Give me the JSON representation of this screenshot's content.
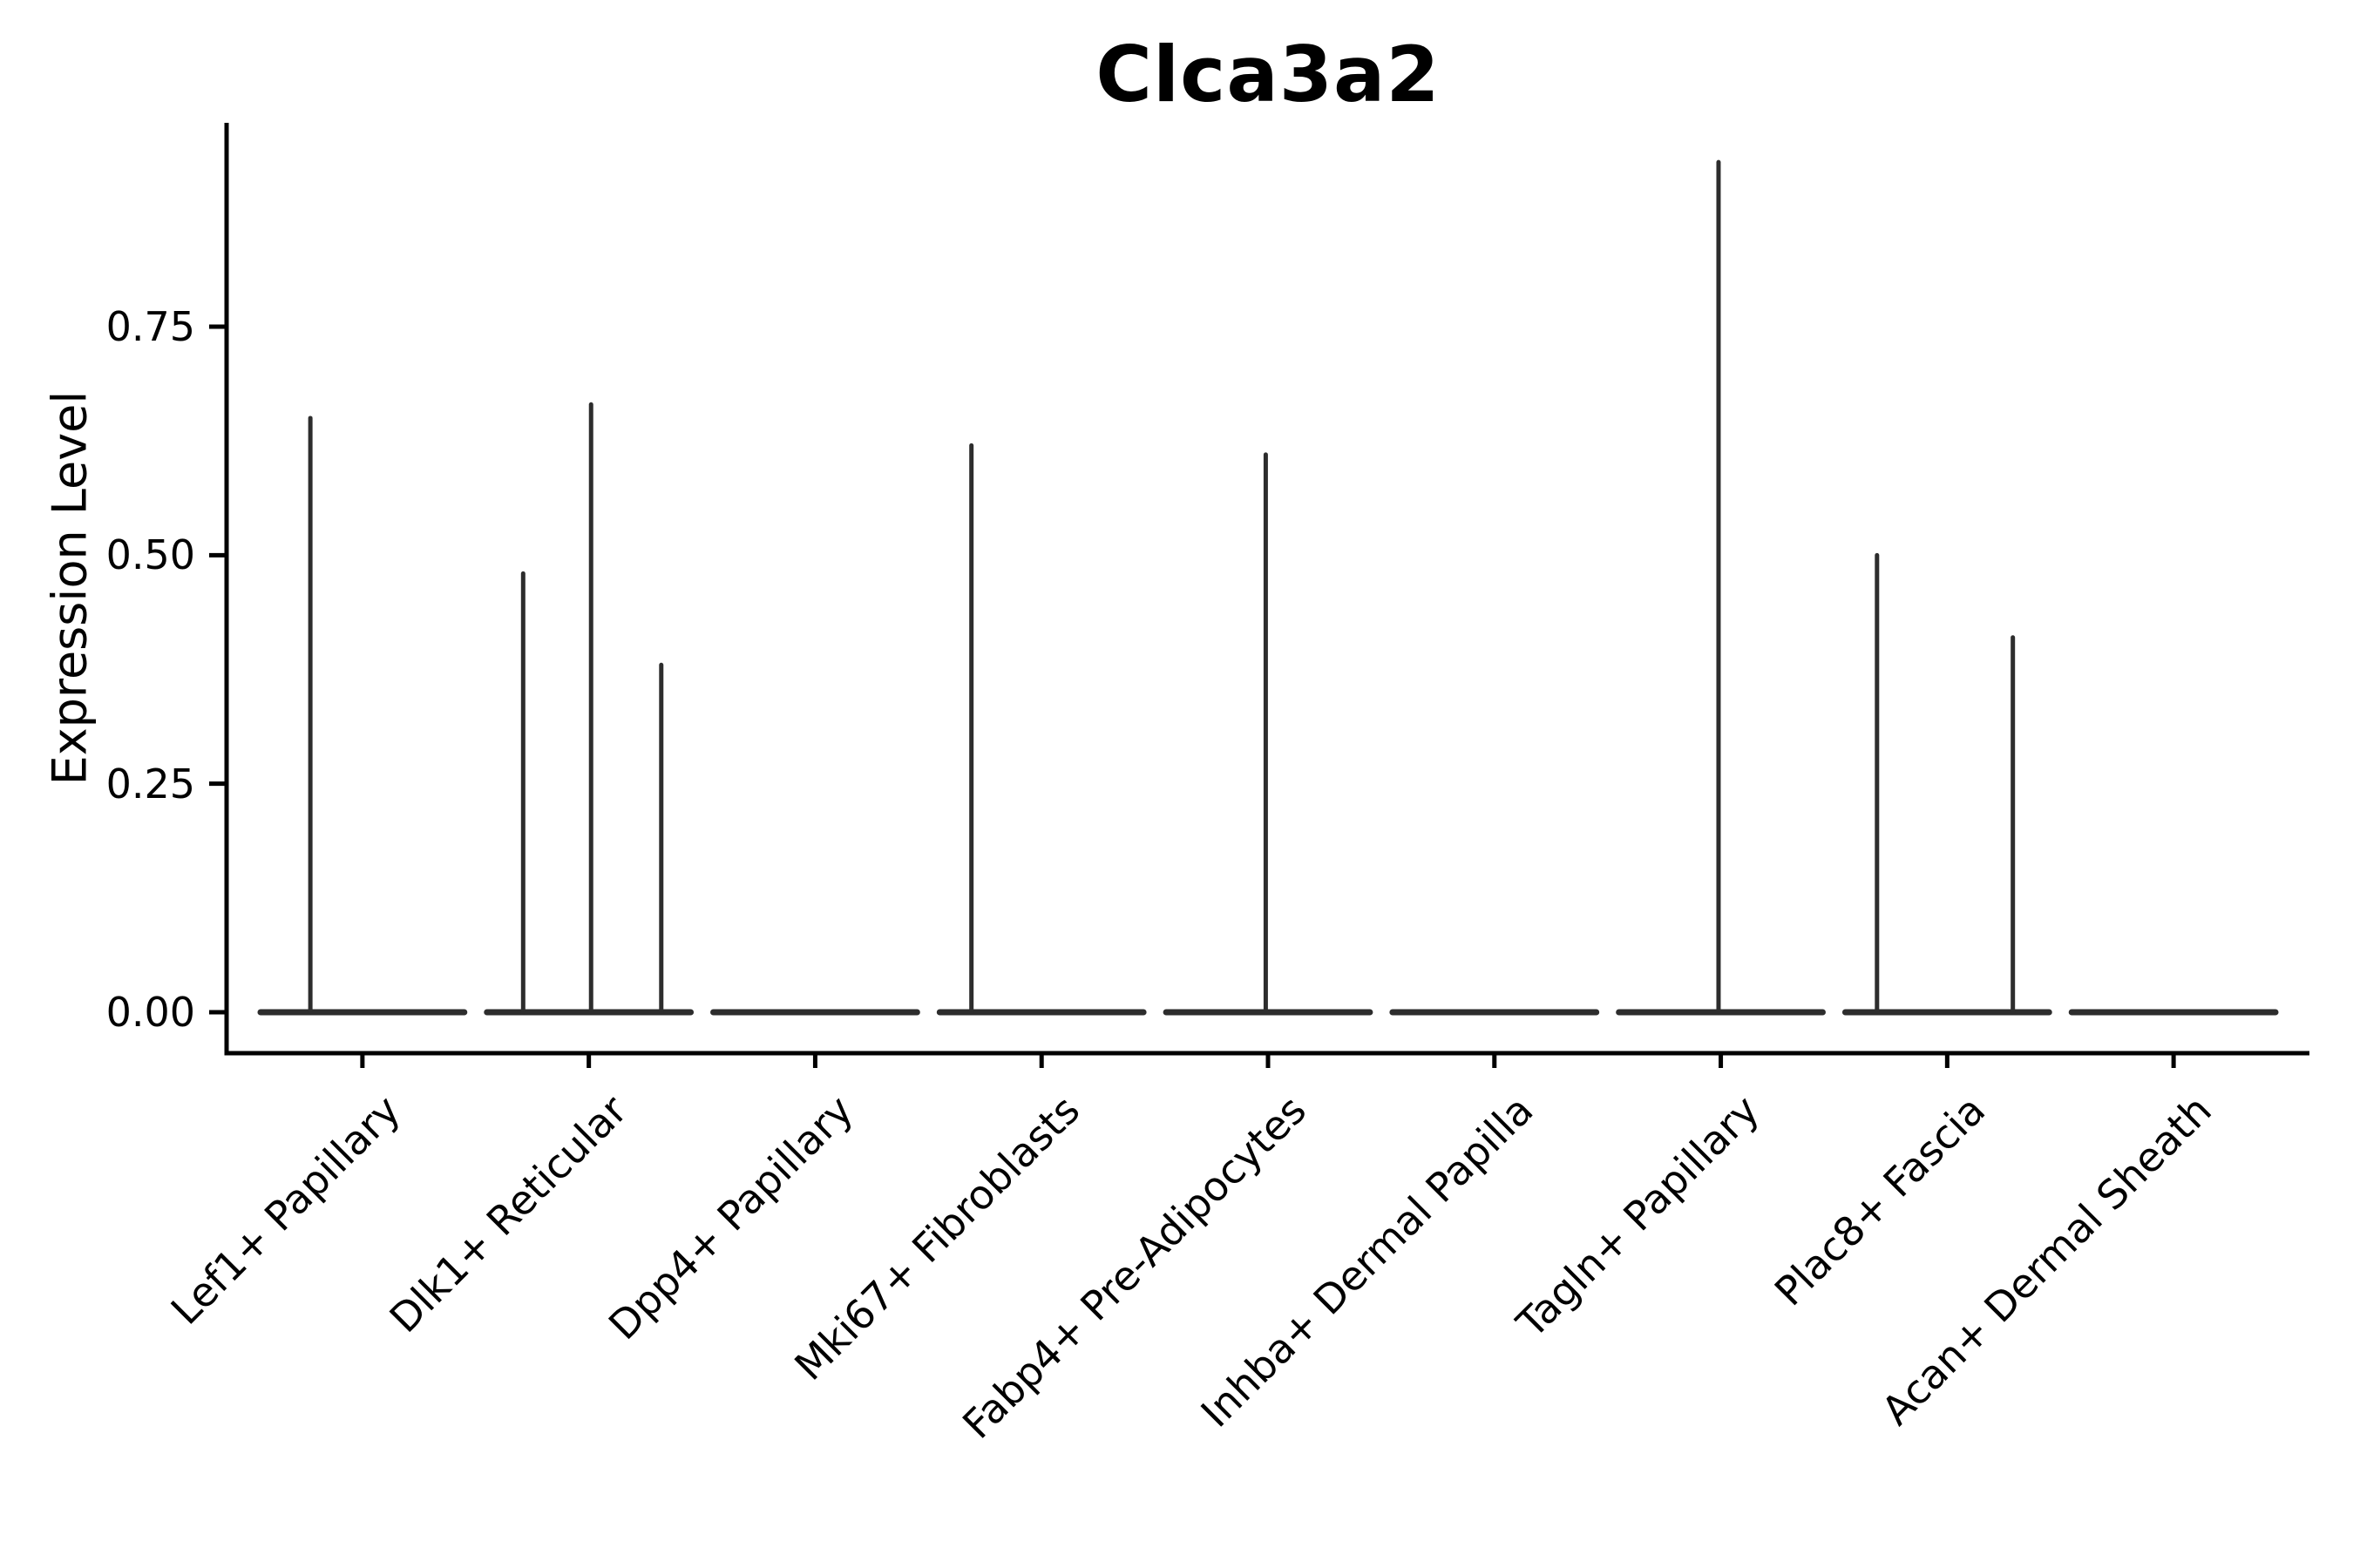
{
  "chart_data": {
    "type": "violin",
    "title": "Clca3a2",
    "ylabel": "Expression Level",
    "xlabel": "",
    "ylim": [
      -0.046,
      0.974
    ],
    "grid": false,
    "legend": "none",
    "violin_width": 0.9,
    "yticks": [
      {
        "value": 0.0,
        "label": "0.00"
      },
      {
        "value": 0.25,
        "label": "0.25"
      },
      {
        "value": 0.5,
        "label": "0.50"
      },
      {
        "value": 0.75,
        "label": "0.75"
      }
    ],
    "categories": [
      {
        "label": "Lef1+ Papillary",
        "baseline_value": 0.0,
        "spikes": [
          {
            "offset": -0.23,
            "value": 0.65
          }
        ]
      },
      {
        "label": "Dlk1+ Reticular",
        "baseline_value": 0.0,
        "spikes": [
          {
            "offset": -0.29,
            "value": 0.48
          },
          {
            "offset": 0.01,
            "value": 0.665
          },
          {
            "offset": 0.32,
            "value": 0.38
          }
        ]
      },
      {
        "label": "Dpp4+ Papillary",
        "baseline_value": 0.0,
        "spikes": []
      },
      {
        "label": "Mki67+ Fibroblasts",
        "baseline_value": 0.0,
        "spikes": [
          {
            "offset": -0.31,
            "value": 0.62
          }
        ]
      },
      {
        "label": "Fabp4+ Pre-Adipocytes",
        "baseline_value": 0.0,
        "spikes": [
          {
            "offset": -0.01,
            "value": 0.61
          }
        ]
      },
      {
        "label": "Inhba+ Dermal Papilla",
        "baseline_value": 0.0,
        "spikes": []
      },
      {
        "label": "Tagln+ Papillary",
        "baseline_value": 0.0,
        "spikes": [
          {
            "offset": -0.01,
            "value": 0.93
          }
        ]
      },
      {
        "label": "Plac8+ Fascia",
        "baseline_value": 0.0,
        "spikes": [
          {
            "offset": -0.31,
            "value": 0.5
          },
          {
            "offset": 0.29,
            "value": 0.41
          }
        ]
      },
      {
        "label": "Acan+ Dermal Sheath",
        "baseline_value": 0.0,
        "spikes": []
      }
    ],
    "colors": {
      "violin_line": "#2d2d2d",
      "axis": "#000000",
      "text": "#000000",
      "background": "#ffffff"
    }
  }
}
